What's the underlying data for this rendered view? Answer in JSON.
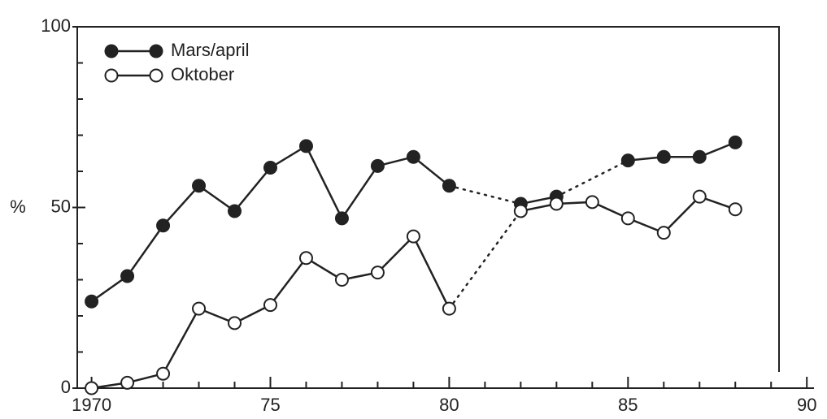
{
  "chart_data": {
    "type": "line",
    "ylabel": "%",
    "x": [
      1970,
      1971,
      1972,
      1973,
      1974,
      1975,
      1976,
      1977,
      1978,
      1979,
      1980,
      1981,
      1982,
      1983,
      1984,
      1985,
      1986,
      1987,
      1988
    ],
    "series": [
      {
        "name": "Mars/april",
        "color": "#222222",
        "marker": "filled",
        "values": [
          24,
          31,
          45,
          56,
          49,
          61,
          67,
          47,
          61.5,
          64,
          56,
          null,
          51,
          53,
          null,
          63,
          64,
          64,
          68
        ]
      },
      {
        "name": "Oktober",
        "color": "#222222",
        "marker": "open",
        "values": [
          0,
          1.5,
          4,
          22,
          18,
          23,
          36,
          30,
          32,
          42,
          22,
          null,
          49,
          51,
          51.5,
          47,
          43,
          53,
          49.5
        ]
      }
    ],
    "gap_style": "dotted",
    "xlim": [
      1969.6,
      1990.2
    ],
    "xticks": [
      1970,
      {
        "value": 1975,
        "label": "75"
      },
      {
        "value": 1980,
        "label": "80"
      },
      {
        "value": 1985,
        "label": "85"
      },
      {
        "value": 1990,
        "label": "90"
      }
    ],
    "xminorticks": [
      1971,
      1972,
      1973,
      1974,
      1976,
      1977,
      1978,
      1979,
      1981,
      1982,
      1983,
      1984,
      1986,
      1987,
      1988,
      1989
    ],
    "ylim": [
      0,
      100
    ],
    "yticks": [
      0,
      50,
      100
    ],
    "yminorticks": [
      10,
      20,
      30,
      40,
      60,
      70,
      80,
      90
    ],
    "legend": "top-left"
  }
}
